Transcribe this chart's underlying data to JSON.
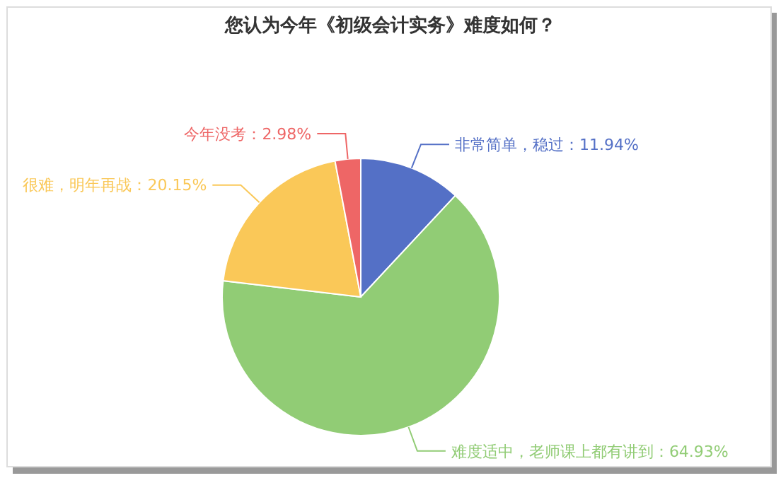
{
  "chart_data": {
    "type": "pie",
    "title": "您认为今年《初级会计实务》难度如何？",
    "categories": [
      "非常简单，稳过",
      "难度适中，老师课上都有讲到",
      "很难，明年再战",
      "今年没考"
    ],
    "values": [
      11.94,
      64.93,
      20.15,
      2.98
    ],
    "value_labels": [
      "11.94%",
      "64.93%",
      "20.15%",
      "2.98%"
    ],
    "colors": [
      "#5470c6",
      "#91cc75",
      "#fac858",
      "#ee6666"
    ]
  }
}
